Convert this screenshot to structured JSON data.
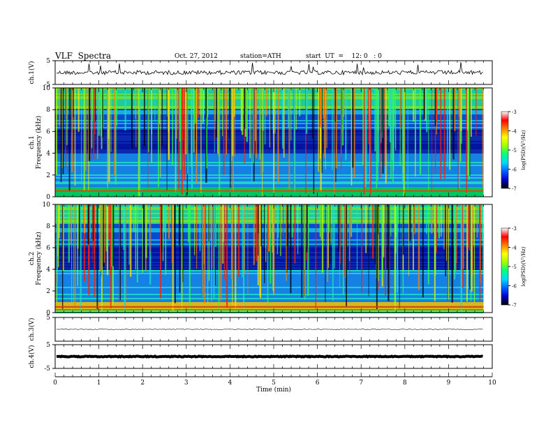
{
  "header": {
    "title": "VLF  Spectra",
    "date": "Oct. 27, 2012",
    "station": "station=ATH",
    "start": "start  UT  =    12: 0   : 0"
  },
  "chart_data": [
    {
      "type": "line",
      "panel": "ch1-waveform",
      "ylabel": "ch.1(V)",
      "ylim": [
        -5,
        5
      ],
      "y_ticks": [
        "5",
        "-5"
      ],
      "baseline_value": 0,
      "color": "#000000"
    },
    {
      "type": "heatmap",
      "panel": "ch1-spectrogram",
      "ylabel_prefix": "ch.1",
      "ylabel": "Frequency  (kHz)",
      "xlim": [
        0,
        10
      ],
      "ylim": [
        0,
        10
      ],
      "y_ticks": [
        "0",
        "2",
        "4",
        "6",
        "8",
        "10"
      ],
      "data_end_min": 9.8,
      "colorbar": {
        "label": "log(PSD)(V²/Hz)",
        "range": [
          -7,
          -3
        ],
        "ticks": [
          "-3",
          "-4",
          "-5",
          "-6",
          "-7"
        ],
        "colors": [
          "#000000",
          "#0000c8",
          "#0060ff",
          "#00d8ff",
          "#00ff80",
          "#a0ff00",
          "#ffff00",
          "#ff8000",
          "#ff0000",
          "#ffffff"
        ]
      }
    },
    {
      "type": "heatmap",
      "panel": "ch2-spectrogram",
      "ylabel_prefix": "ch.2",
      "ylabel": "Frequency  (kHz)",
      "xlim": [
        0,
        10
      ],
      "ylim": [
        0,
        10
      ],
      "y_ticks": [
        "0",
        "2",
        "4",
        "6",
        "8",
        "10"
      ],
      "data_end_min": 9.8,
      "colorbar": {
        "label": "log(PSD)(V²/Hz)",
        "range": [
          -7,
          -3
        ],
        "ticks": [
          "-3",
          "-4",
          "-5",
          "-6",
          "-7"
        ],
        "colors": [
          "#000000",
          "#0000c8",
          "#0060ff",
          "#00d8ff",
          "#00ff80",
          "#a0ff00",
          "#ffff00",
          "#ff8000",
          "#ff0000",
          "#ffffff"
        ]
      }
    },
    {
      "type": "line",
      "panel": "ch3-waveform",
      "ylabel": "ch.3(V)",
      "ylim": [
        -5,
        5
      ],
      "y_ticks": [
        "5"
      ],
      "baseline_value": 0,
      "color": "#333333"
    },
    {
      "type": "line",
      "panel": "ch4-waveform",
      "ylabel": "ch.4(V)",
      "ylim": [
        -5,
        5
      ],
      "y_ticks": [
        "5",
        "-5"
      ],
      "baseline_value": 0,
      "color": "#000000"
    }
  ],
  "x_axis": {
    "label": "Time  (min)",
    "ticks": [
      "0",
      "1",
      "2",
      "3",
      "4",
      "5",
      "6",
      "7",
      "8",
      "9",
      "10"
    ],
    "xlim": [
      0,
      10
    ]
  }
}
